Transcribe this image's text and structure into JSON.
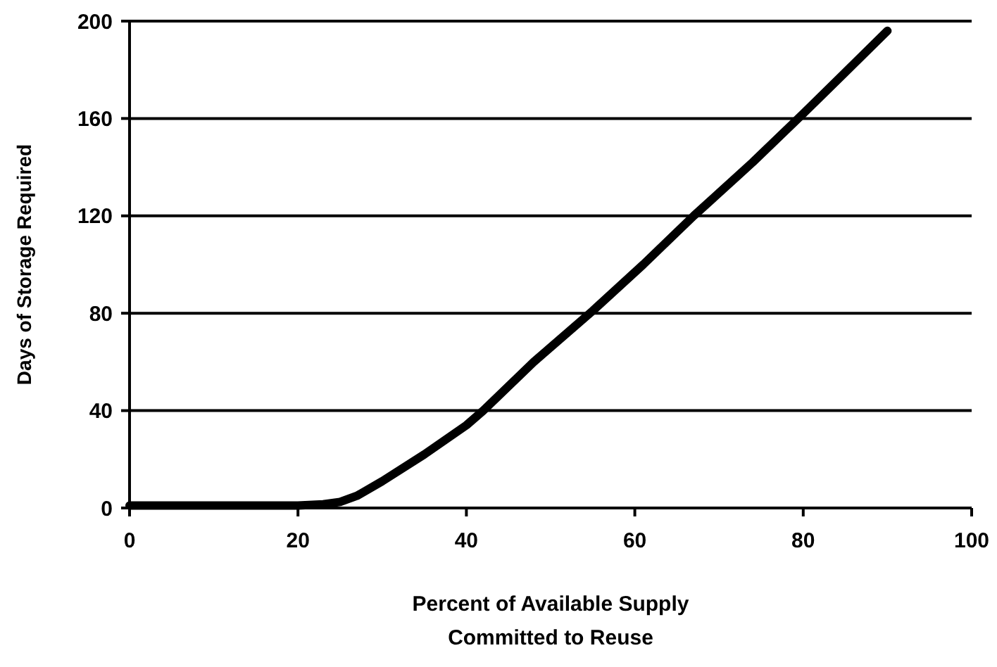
{
  "chart_data": {
    "type": "line",
    "xlabel": "Percent of Available Supply\nCommitted to Reuse",
    "ylabel": "Days of Storage Required",
    "x": [
      0,
      10,
      20,
      23,
      25,
      27,
      30,
      35,
      40,
      42,
      48,
      55,
      61,
      67,
      74,
      80,
      85,
      90
    ],
    "series": [
      {
        "color": "#000000",
        "values": [
          1,
          1,
          1,
          1.5,
          2.5,
          5,
          11,
          22,
          34,
          40,
          60,
          81,
          100,
          120,
          142,
          162,
          179,
          196
        ]
      }
    ],
    "xlim": [
      0,
      100
    ],
    "xticks": [
      0,
      20,
      40,
      60,
      80,
      100
    ],
    "ylim": [
      0,
      200
    ],
    "yticks": [
      0,
      40,
      80,
      120,
      160,
      200
    ],
    "grid": "y",
    "marker": "none",
    "line_style": "solid"
  }
}
